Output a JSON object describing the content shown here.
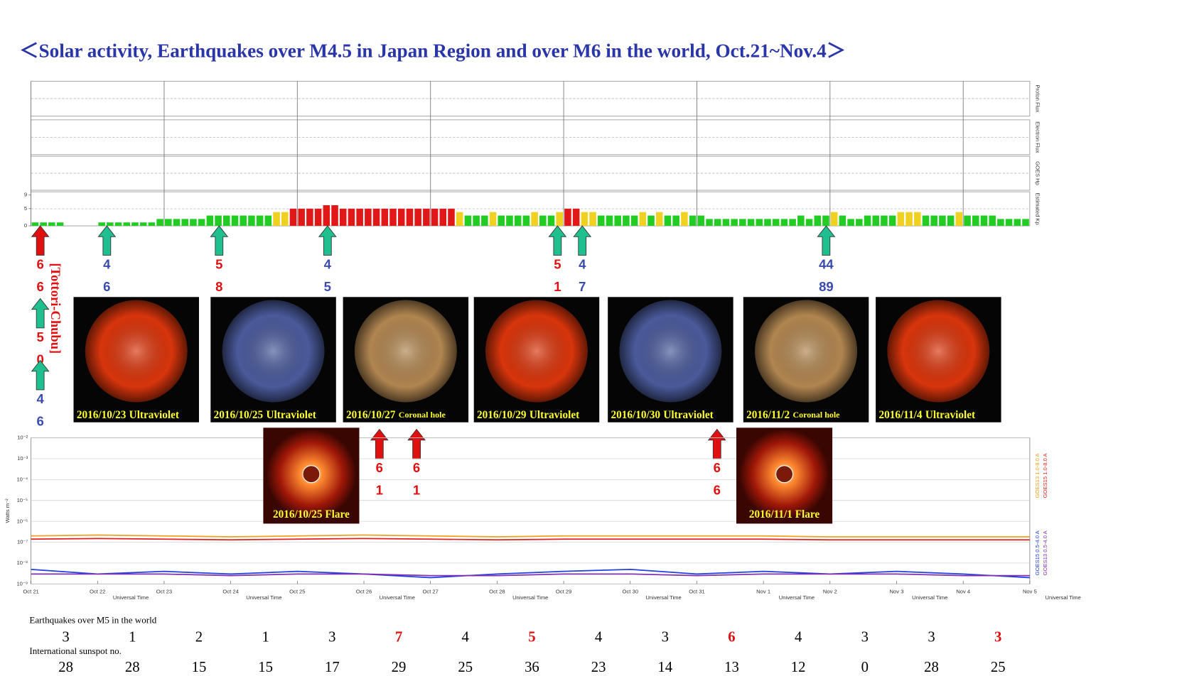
{
  "title": "＜Solar activity, Earthquakes over M4.5 in Japan Region and over M6 in the world, Oct.21~Nov.4＞",
  "annotation": "[Tottori-Chubu]",
  "panels": [
    "Proton Flux",
    "Electron Flux",
    "GOES Hp"
  ],
  "kp": {
    "label": "Estimated Kp",
    "ylim": [
      0,
      9
    ],
    "yticks": [
      0,
      5,
      9
    ],
    "values": [
      1,
      1,
      1,
      1,
      0,
      0,
      0,
      0,
      1,
      1,
      1,
      1,
      1,
      1,
      1,
      2,
      2,
      2,
      2,
      2,
      2,
      3,
      3,
      3,
      3,
      3,
      3,
      3,
      3,
      4,
      4,
      5,
      5,
      5,
      5,
      6,
      6,
      5,
      5,
      5,
      5,
      5,
      5,
      5,
      5,
      5,
      5,
      5,
      5,
      5,
      5,
      4,
      3,
      3,
      3,
      4,
      3,
      3,
      3,
      3,
      4,
      3,
      3,
      4,
      5,
      5,
      4,
      4,
      3,
      3,
      3,
      3,
      3,
      4,
      3,
      4,
      3,
      3,
      4,
      3,
      3,
      2,
      2,
      2,
      2,
      2,
      2,
      2,
      2,
      2,
      2,
      2,
      3,
      2,
      3,
      3,
      4,
      3,
      2,
      2,
      3,
      3,
      3,
      3,
      4,
      4,
      4,
      3,
      3,
      3,
      3,
      4,
      3,
      3,
      3,
      3,
      2,
      2,
      2,
      2
    ]
  },
  "arrows": [
    {
      "color": "#e01010",
      "label_color": "#e01010",
      "labels": [
        "6",
        "6"
      ]
    },
    {
      "color": "#1fbf8f",
      "label_color": "#3a4bb0",
      "labels": [
        "4",
        "6"
      ]
    },
    {
      "color": "#1fbf8f",
      "label_color": "#e01010",
      "labels": [
        "5",
        "8"
      ]
    },
    {
      "color": "#1fbf8f",
      "label_color": "#3a4bb0",
      "labels": [
        "4",
        "5"
      ]
    },
    {
      "color": "#1fbf8f",
      "label_color": "#e01010",
      "labels": [
        "5",
        "1"
      ]
    },
    {
      "color": "#1fbf8f",
      "label_color": "#3a4bb0",
      "labels": [
        "4",
        "7"
      ]
    },
    {
      "color": "#1fbf8f",
      "label_color": "#3a4bb0",
      "labels": [
        "44",
        "89"
      ]
    },
    {
      "color": "#1fbf8f",
      "label_color": "#e01010",
      "labels": [
        "5",
        "0"
      ]
    },
    {
      "color": "#1fbf8f",
      "label_color": "#3a4bb0",
      "labels": [
        "4",
        "6"
      ]
    },
    {
      "color": "#e01010",
      "label_color": "#e01010",
      "labels": [
        "6",
        "1"
      ]
    },
    {
      "color": "#e01010",
      "label_color": "#e01010",
      "labels": [
        "6",
        "1"
      ]
    },
    {
      "color": "#e01010",
      "label_color": "#e01010",
      "labels": [
        "6",
        "6"
      ]
    }
  ],
  "images": [
    {
      "date": "2016/10/23",
      "kind": "Ultraviolet",
      "color": "#d8350c"
    },
    {
      "date": "2016/10/25",
      "kind": "Ultraviolet",
      "color": "#4a5a9a"
    },
    {
      "date": "2016/10/27",
      "kind": "Coronal hole",
      "color": "#b08550"
    },
    {
      "date": "2016/10/29",
      "kind": "Ultraviolet",
      "color": "#d8350c"
    },
    {
      "date": "2016/10/30",
      "kind": "Ultraviolet",
      "color": "#4a5a9a"
    },
    {
      "date": "2016/11/2",
      "kind": "Coronal hole",
      "color": "#b08550"
    },
    {
      "date": "2016/11/4",
      "kind": "Ultraviolet",
      "color": "#d8350c"
    }
  ],
  "flares": [
    "2016/10/25 Flare",
    "2016/11/1 Flare"
  ],
  "chart_data": {
    "type": "line",
    "ylabel": "Watts m⁻²",
    "xlabel": "Universal Time",
    "log": true,
    "categories": [
      "Oct 21",
      "Oct 22",
      "Oct 23",
      "Oct 24",
      "Oct 25",
      "Oct 26",
      "Oct 27",
      "Oct 28",
      "Oct 29",
      "Oct 30",
      "Oct 31",
      "Nov 1",
      "Nov 2",
      "Nov 3",
      "Nov 4",
      "Nov 5"
    ],
    "ylim": [
      1e-09,
      0.01
    ],
    "yticks": [
      {
        "value": 1e-09,
        "label": "10⁻⁹"
      },
      {
        "value": 1e-08,
        "label": "10⁻⁸"
      },
      {
        "value": 1e-07,
        "label": "10⁻⁷"
      },
      {
        "value": 1e-06,
        "label": "10⁻⁶"
      },
      {
        "value": 1e-05,
        "label": "10⁻⁵"
      },
      {
        "value": 0.0001,
        "label": "10⁻⁴"
      },
      {
        "value": 0.001,
        "label": "10⁻³"
      },
      {
        "value": 0.01,
        "label": "10⁻²"
      }
    ],
    "series": [
      {
        "name": "GOES13 1.0-8.0 A",
        "color": "#f0a020",
        "values": [
          2e-07,
          2.2e-07,
          2e-07,
          1.8e-07,
          2e-07,
          2.2e-07,
          2e-07,
          1.8e-07,
          2e-07,
          2e-07,
          2e-07,
          2e-07,
          1.8e-07,
          1.8e-07,
          1.8e-07,
          1.8e-07
        ]
      },
      {
        "name": "GOES15 1.0-8.0 A",
        "color": "#e02020",
        "values": [
          1.4e-07,
          1.5e-07,
          1.4e-07,
          1.3e-07,
          1.4e-07,
          1.5e-07,
          1.4e-07,
          1.3e-07,
          1.4e-07,
          1.4e-07,
          1.4e-07,
          1.4e-07,
          1.3e-07,
          1.3e-07,
          1.3e-07,
          1.3e-07
        ]
      },
      {
        "name": "GOES15 0.5-4.0 A",
        "color": "#2040e0",
        "values": [
          5e-09,
          3e-09,
          4e-09,
          3e-09,
          4e-09,
          3e-09,
          2e-09,
          3e-09,
          4e-09,
          5e-09,
          3e-09,
          4e-09,
          3e-09,
          4e-09,
          3e-09,
          2e-09
        ]
      },
      {
        "name": "GOES13 0.5-4.0 A",
        "color": "#8030b0",
        "values": [
          3e-09,
          3e-09,
          3e-09,
          2.5e-09,
          3e-09,
          3e-09,
          2.5e-09,
          2.5e-09,
          3e-09,
          3e-09,
          2.5e-09,
          3e-09,
          3e-09,
          3e-09,
          2.5e-09,
          2.5e-09
        ]
      }
    ]
  },
  "table": {
    "quake_label": "Earthquakes over M5 in the world",
    "quakes": [
      3,
      1,
      2,
      1,
      3,
      7,
      4,
      5,
      4,
      3,
      6,
      4,
      3,
      3,
      3
    ],
    "quake_colors": [
      "#000",
      "#000",
      "#000",
      "#000",
      "#000",
      "#e01010",
      "#000",
      "#e01010",
      "#000",
      "#000",
      "#e01010",
      "#000",
      "#000",
      "#000",
      "#e01010"
    ],
    "sunspot_label": "International sunspot no.",
    "sunspots": [
      28,
      28,
      15,
      15,
      17,
      29,
      25,
      36,
      23,
      14,
      13,
      12,
      0,
      28,
      25
    ]
  }
}
